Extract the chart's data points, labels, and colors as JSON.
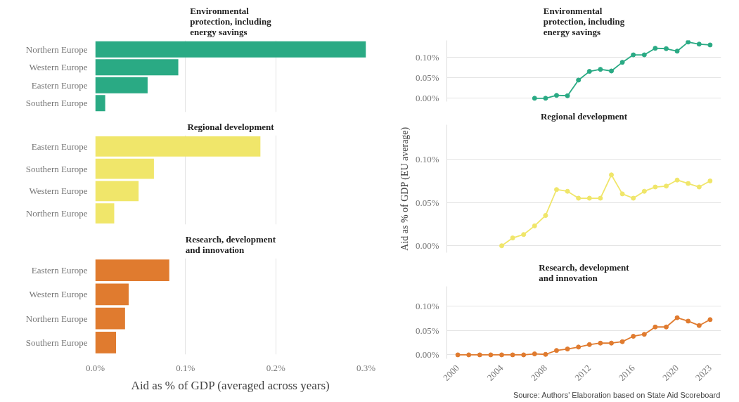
{
  "chart_data": [
    {
      "type": "bar",
      "orientation": "horizontal",
      "title": "Environmental\nprotection, including\nenergy savings",
      "categories": [
        "Northern Europe",
        "Western Europe",
        "Eastern Europe",
        "Southern Europe"
      ],
      "values": [
        0.3,
        0.092,
        0.058,
        0.011
      ],
      "color": "#2aaa84",
      "xlim": [
        0,
        0.3
      ],
      "xticks": [
        {
          "value": 0,
          "label": null
        },
        {
          "value": 0.1,
          "label": null
        },
        {
          "value": 0.2,
          "label": null
        },
        {
          "value": 0.3,
          "label": null
        }
      ],
      "grid": "x",
      "tick_labels": "y"
    },
    {
      "type": "bar",
      "orientation": "horizontal",
      "title": "Regional development",
      "categories": [
        "Eastern Europe",
        "Southern Europe",
        "Western Europe",
        "Northern Europe"
      ],
      "values": [
        0.183,
        0.065,
        0.048,
        0.021
      ],
      "color": "#f0e66a",
      "xlim": [
        0,
        0.3
      ],
      "xticks": [
        {
          "value": 0,
          "label": null
        },
        {
          "value": 0.1,
          "label": null
        },
        {
          "value": 0.2,
          "label": null
        },
        {
          "value": 0.3,
          "label": null
        }
      ],
      "grid": "x",
      "tick_labels": "y"
    },
    {
      "type": "bar",
      "orientation": "horizontal",
      "title": "Research, development\nand innovation",
      "xlabel": "Aid as % of GDP (averaged across years)",
      "categories": [
        "Eastern Europe",
        "Western Europe",
        "Northern Europe",
        "Southern Europe"
      ],
      "values": [
        0.082,
        0.037,
        0.033,
        0.023
      ],
      "color": "#e07b2f",
      "xlim": [
        0,
        0.3
      ],
      "xticks": [
        {
          "value": 0,
          "label": "0.0%"
        },
        {
          "value": 0.1,
          "label": "0.1%"
        },
        {
          "value": 0.2,
          "label": "0.2%"
        },
        {
          "value": 0.3,
          "label": "0.3%"
        }
      ],
      "grid": "x"
    },
    {
      "type": "line",
      "title": "Environmental\nprotection, including\nenergy savings",
      "x": [
        2007,
        2008,
        2009,
        2010,
        2011,
        2012,
        2013,
        2014,
        2015,
        2016,
        2017,
        2018,
        2019,
        2020,
        2021,
        2022,
        2023
      ],
      "values": [
        0,
        0,
        0.007,
        0.006,
        0.044,
        0.065,
        0.07,
        0.066,
        0.087,
        0.105,
        0.105,
        0.121,
        0.12,
        0.114,
        0.136,
        0.131,
        0.129
      ],
      "color": "#2aaa84",
      "marker": "circle",
      "xlim": [
        1999,
        2024
      ],
      "xticks": [
        2000,
        2004,
        2008,
        2012,
        2016,
        2020,
        2023
      ],
      "ylim": [
        -0.008,
        0.14
      ],
      "yticks": [
        {
          "value": 0,
          "label": "0.00%"
        },
        {
          "value": 0.05,
          "label": "0.05%"
        },
        {
          "value": 0.1,
          "label": "0.10%"
        }
      ],
      "grid": "y",
      "tick_labels": "y"
    },
    {
      "type": "line",
      "title": "Regional development",
      "ylabel": "Aid as % of GDP (EU average)",
      "x": [
        2004,
        2005,
        2006,
        2007,
        2008,
        2009,
        2010,
        2011,
        2012,
        2013,
        2014,
        2015,
        2016,
        2017,
        2018,
        2019,
        2020,
        2021,
        2022,
        2023
      ],
      "values": [
        0,
        0.009,
        0.013,
        0.023,
        0.035,
        0.065,
        0.063,
        0.055,
        0.055,
        0.055,
        0.082,
        0.06,
        0.055,
        0.063,
        0.068,
        0.069,
        0.076,
        0.072,
        0.068,
        0.075
      ],
      "color": "#f0e66a",
      "marker": "circle",
      "xlim": [
        1999,
        2024
      ],
      "xticks": [
        2000,
        2004,
        2008,
        2012,
        2016,
        2020,
        2023
      ],
      "ylim": [
        -0.008,
        0.14
      ],
      "yticks": [
        {
          "value": 0,
          "label": "0.00%"
        },
        {
          "value": 0.05,
          "label": "0.05%"
        },
        {
          "value": 0.1,
          "label": "0.10%"
        }
      ],
      "grid": "y",
      "tick_labels": "y"
    },
    {
      "type": "line",
      "title": "Research, development\nand innovation",
      "x": [
        2000,
        2001,
        2002,
        2003,
        2004,
        2005,
        2006,
        2007,
        2008,
        2009,
        2010,
        2011,
        2012,
        2013,
        2014,
        2015,
        2016,
        2017,
        2018,
        2019,
        2020,
        2021,
        2022,
        2023
      ],
      "values": [
        0,
        0,
        0,
        0,
        0,
        0,
        0,
        0.002,
        0.001,
        0.009,
        0.012,
        0.016,
        0.021,
        0.024,
        0.024,
        0.027,
        0.038,
        0.042,
        0.057,
        0.057,
        0.076,
        0.069,
        0.06,
        0.072
      ],
      "color": "#e07b2f",
      "marker": "circle",
      "xlim": [
        1999,
        2024
      ],
      "xticks": [
        2000,
        2004,
        2008,
        2012,
        2016,
        2020,
        2023
      ],
      "ylim": [
        -0.008,
        0.14
      ],
      "yticks": [
        {
          "value": 0,
          "label": "0.00%"
        },
        {
          "value": 0.05,
          "label": "0.05%"
        },
        {
          "value": 0.1,
          "label": "0.10%"
        }
      ],
      "grid": "y",
      "annotations": [
        "Source: Authors' Elaboration based on State Aid Scoreboard"
      ]
    }
  ]
}
